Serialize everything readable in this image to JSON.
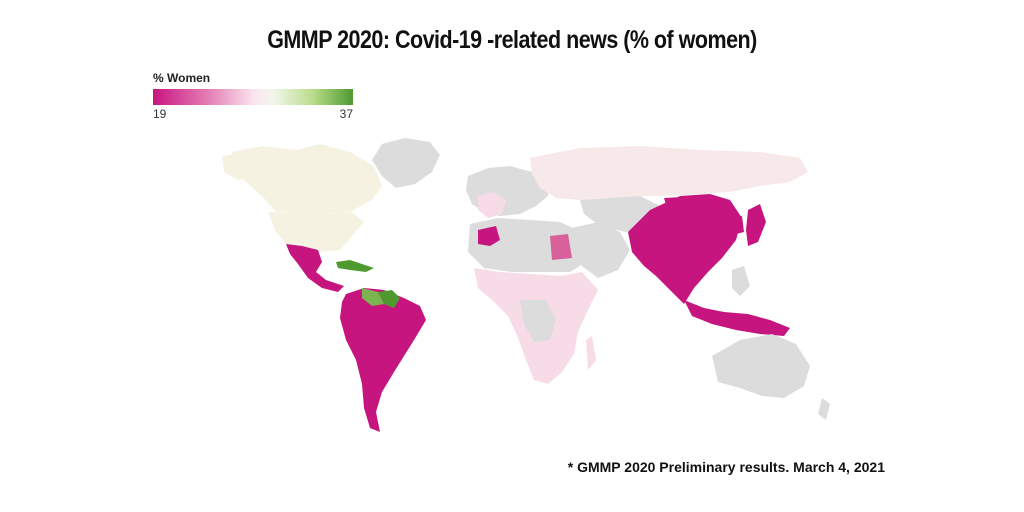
{
  "title": "GMMP 2020: Covid-19 -related news (% of women)",
  "legend": {
    "title": "% Women",
    "min_label": "19",
    "max_label": "37",
    "min_value": 19,
    "max_value": 37,
    "color_low": "#c7157f",
    "color_mid": "#fbe3ee",
    "color_high": "#4e9a2f"
  },
  "colors": {
    "no_data": "#dcdcdc",
    "low": "#c7157f",
    "light_pink": "#f7dce8",
    "north_america": "#f6f2e2",
    "green": "#4e9a2f",
    "light_green": "#7cb451"
  },
  "footnote": "* GMMP 2020 Preliminary results. March 4, 2021"
}
